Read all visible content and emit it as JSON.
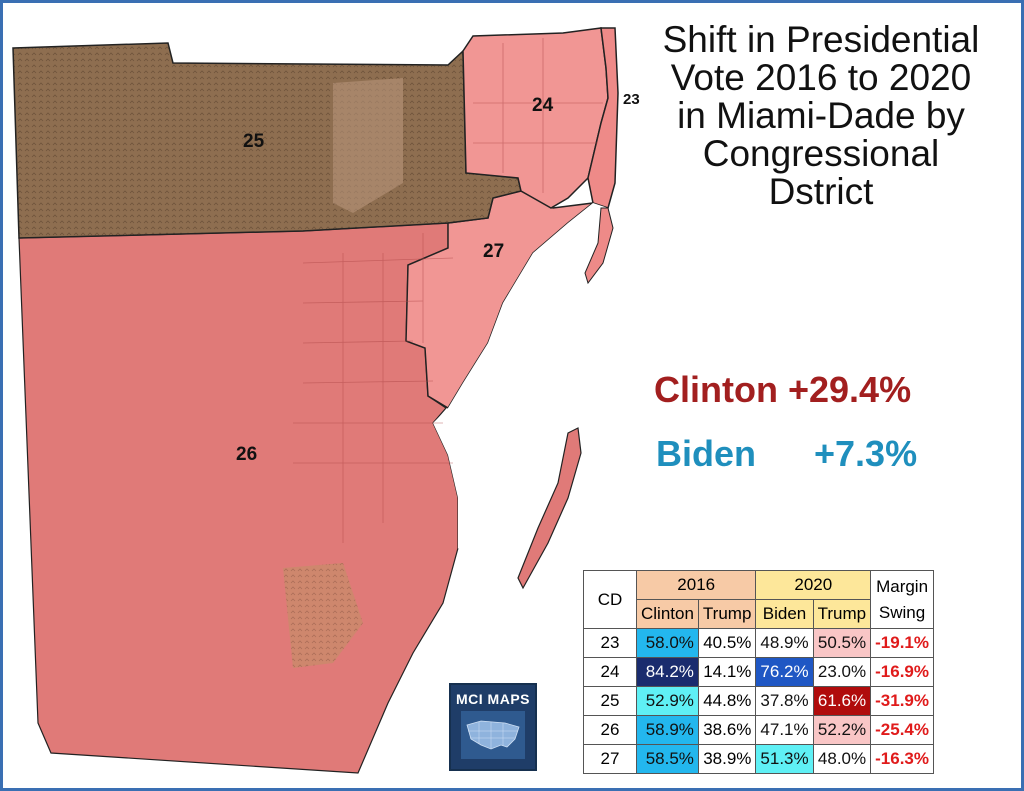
{
  "title_lines": [
    "Shift in Presidential",
    "Vote 2016 to 2020",
    "in Miami-Dade by",
    "Congressional",
    "Dstrict"
  ],
  "summary": {
    "clinton_label": "Clinton",
    "clinton_value": "+29.4%",
    "biden_label": "Biden",
    "biden_value": "+7.3%"
  },
  "district_labels": {
    "d23": "23",
    "d24": "24",
    "d25": "25",
    "d26": "26",
    "d27": "27"
  },
  "colors": {
    "border": "#3a6fb3",
    "clinton_red": "#a21f1f",
    "biden_blue": "#1f8fbd",
    "swing_red": "#e01b1b",
    "district_fill": "#e0706f",
    "district_25_fill": "#8e6e50",
    "header_2016": "#f7caa6",
    "header_2020": "#fde79a"
  },
  "logo": {
    "title": "MCI MAPS",
    "icon": "usa-map-icon"
  },
  "table": {
    "cd_header": "CD",
    "year_2016": "2016",
    "year_2020": "2020",
    "margin_header_line1": "Margin",
    "margin_header_line2": "Swing",
    "col_clinton": "Clinton",
    "col_trump_2016": "Trump",
    "col_biden": "Biden",
    "col_trump_2020": "Trump",
    "rows": [
      {
        "cd": "23",
        "clinton": "58.0%",
        "trump16": "40.5%",
        "biden": "48.9%",
        "trump20": "50.5%",
        "swing": "-19.1%",
        "clinton_bg": "#23b7ee",
        "clinton_fg": "#111111",
        "biden_bg": "#ffffff",
        "biden_fg": "#111111",
        "trump20_bg": "#f9c6c6",
        "trump20_fg": "#111111"
      },
      {
        "cd": "24",
        "clinton": "84.2%",
        "trump16": "14.1%",
        "biden": "76.2%",
        "trump20": "23.0%",
        "swing": "-16.9%",
        "clinton_bg": "#1a2c6e",
        "clinton_fg": "#ffffff",
        "biden_bg": "#1f57c4",
        "biden_fg": "#ffffff",
        "trump20_bg": "#ffffff",
        "trump20_fg": "#111111"
      },
      {
        "cd": "25",
        "clinton": "52.9%",
        "trump16": "44.8%",
        "biden": "37.8%",
        "trump20": "61.6%",
        "swing": "-31.9%",
        "clinton_bg": "#5ff0f5",
        "clinton_fg": "#111111",
        "biden_bg": "#ffffff",
        "biden_fg": "#111111",
        "trump20_bg": "#b00c0c",
        "trump20_fg": "#ffffff"
      },
      {
        "cd": "26",
        "clinton": "58.9%",
        "trump16": "38.6%",
        "biden": "47.1%",
        "trump20": "52.2%",
        "swing": "-25.4%",
        "clinton_bg": "#23b7ee",
        "clinton_fg": "#111111",
        "biden_bg": "#ffffff",
        "biden_fg": "#111111",
        "trump20_bg": "#f9c6c6",
        "trump20_fg": "#111111"
      },
      {
        "cd": "27",
        "clinton": "58.5%",
        "trump16": "38.9%",
        "biden": "51.3%",
        "trump20": "48.0%",
        "swing": "-16.3%",
        "clinton_bg": "#23b7ee",
        "clinton_fg": "#111111",
        "biden_bg": "#5ff0f5",
        "biden_fg": "#111111",
        "trump20_bg": "#ffffff",
        "trump20_fg": "#111111"
      }
    ]
  }
}
